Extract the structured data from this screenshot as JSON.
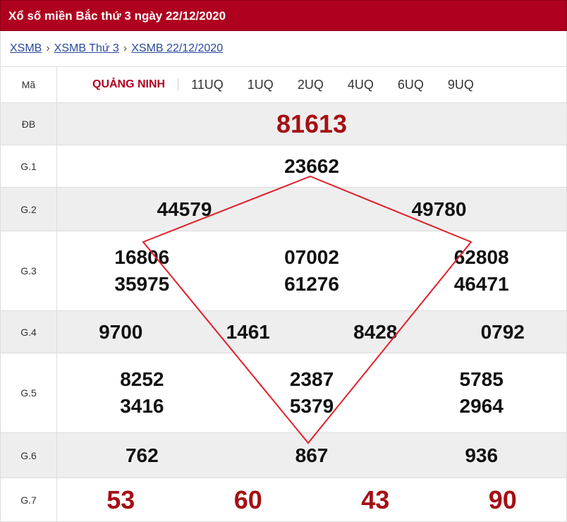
{
  "title": "Xổ số miền Bắc thứ 3 ngày 22/12/2020",
  "breadcrumb": [
    "XSMB",
    "XSMB Thứ 3",
    "XSMB 22/12/2020"
  ],
  "header": {
    "label": "Mã",
    "province": "QUẢNG NINH",
    "codes": [
      "11UQ",
      "1UQ",
      "2UQ",
      "4UQ",
      "6UQ",
      "9UQ"
    ]
  },
  "prizes": {
    "db": {
      "label": "ĐB",
      "numbers": [
        "81613"
      ]
    },
    "g1": {
      "label": "G.1",
      "numbers": [
        "23662"
      ]
    },
    "g2": {
      "label": "G.2",
      "numbers": [
        "44579",
        "49780"
      ]
    },
    "g3": {
      "label": "G.3",
      "numbers": [
        "16806",
        "07002",
        "62808",
        "35975",
        "61276",
        "46471"
      ]
    },
    "g4": {
      "label": "G.4",
      "numbers": [
        "9700",
        "1461",
        "8428",
        "0792"
      ]
    },
    "g5": {
      "label": "G.5",
      "numbers": [
        "8252",
        "2387",
        "5785",
        "3416",
        "5379",
        "2964"
      ]
    },
    "g6": {
      "label": "G.6",
      "numbers": [
        "762",
        "867",
        "936"
      ]
    },
    "g7": {
      "label": "G.7",
      "numbers": [
        "53",
        "60",
        "43",
        "90"
      ]
    }
  },
  "colors": {
    "brand": "#b00020",
    "highlight": "#a50f13",
    "overlay_line": "#e0202a"
  }
}
